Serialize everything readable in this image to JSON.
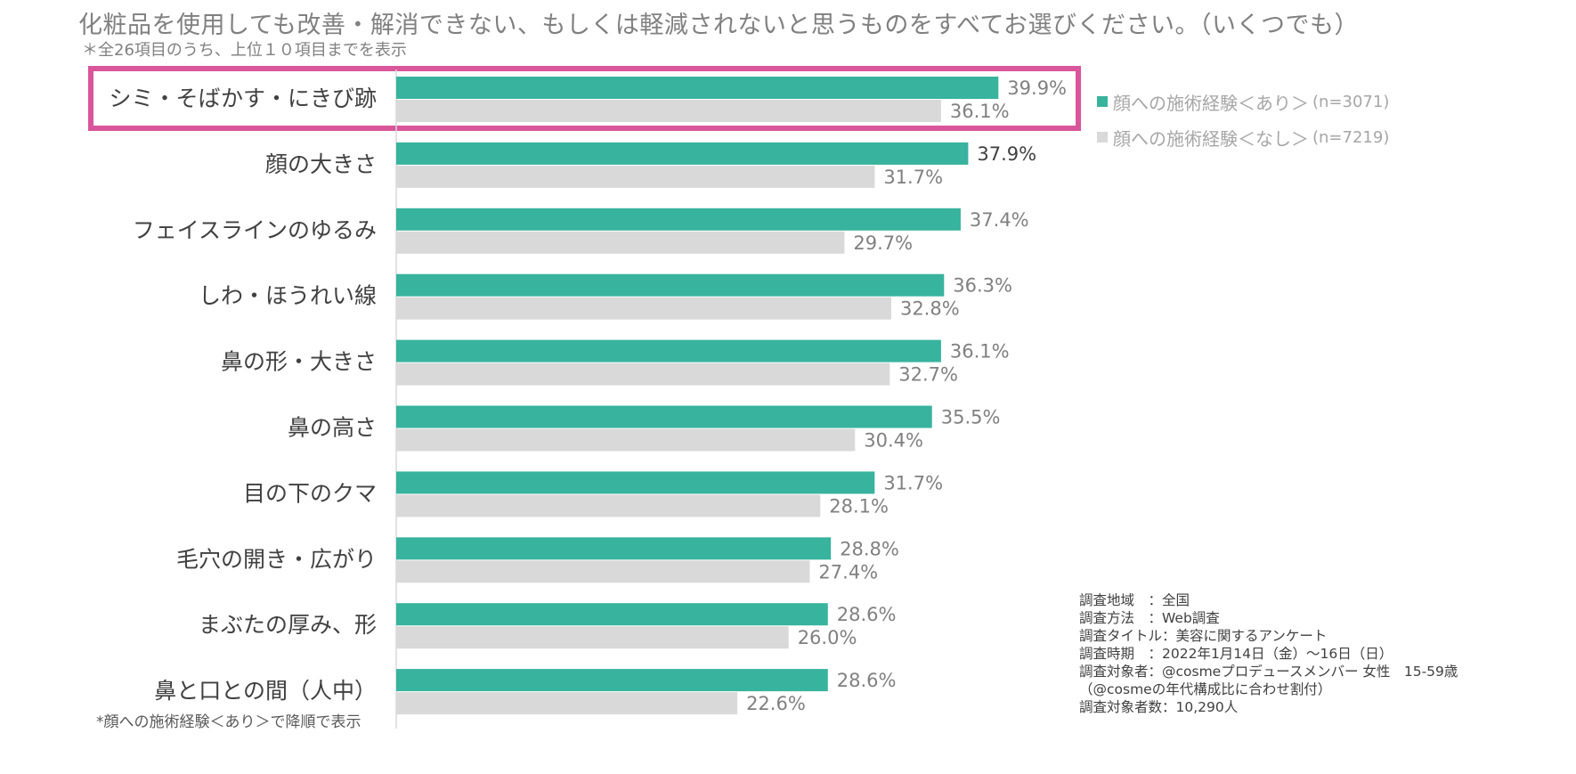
{
  "title": "化粧品を使用しても改善・解消できない、もしくは軽減されないと思うものをすべてお選びください。（いくつでも）",
  "subtitle": "＊全26項目のうち、上位１０項目までを表示",
  "footnote": "*顔への施術経験＜あり＞で降順で表示",
  "colors": {
    "series_a": "#38b39d",
    "series_b": "#d9d9d9",
    "highlight": "#d9569a",
    "axis": "#d9d9d9"
  },
  "legend": [
    {
      "label": "顔への施術経験＜あり＞",
      "n": "(n=3071)"
    },
    {
      "label": "顔への施術経験＜なし＞",
      "n": "(n=7219)"
    }
  ],
  "survey": [
    "調査地域　：全国",
    "調査方法　：Web調査",
    "調査タイトル：美容に関するアンケート",
    "調査時期　：2022年1月14日（金）～16日（日）",
    "調査対象者：@cosmeプロデュースメンバー 女性　15-59歳",
    "（@cosmeの年代構成比に合わせ割付）",
    "調査対象者数：10,290人"
  ],
  "chart_data": {
    "type": "bar",
    "orientation": "horizontal",
    "categories": [
      "シミ・そばかす・にきび跡",
      "顔の大きさ",
      "フェイスラインのゆるみ",
      "しわ・ほうれい線",
      "鼻の形・大きさ",
      "鼻の高さ",
      "目の下のクマ",
      "毛穴の開き・広がり",
      "まぶたの厚み、形",
      "鼻と口との間（人中）"
    ],
    "series": [
      {
        "name": "顔への施術経験＜あり＞",
        "values": [
          39.9,
          37.9,
          37.4,
          36.3,
          36.1,
          35.5,
          31.7,
          28.8,
          28.6,
          28.6
        ],
        "labels": [
          "39.9%",
          "37.9%",
          "37.4%",
          "36.3%",
          "36.1%",
          "35.5%",
          "31.7%",
          "28.8%",
          "28.6%",
          "28.6%"
        ]
      },
      {
        "name": "顔への施術経験＜なし＞",
        "values": [
          36.1,
          31.7,
          29.7,
          32.8,
          32.7,
          30.4,
          28.1,
          27.4,
          26.0,
          22.6
        ],
        "labels": [
          "36.1%",
          "31.7%",
          "29.7%",
          "32.8%",
          "32.7%",
          "30.4%",
          "28.1%",
          "27.4%",
          "26.0%",
          "22.6%"
        ]
      }
    ],
    "xlim": [
      0,
      45
    ],
    "highlighted_category": "シミ・そばかす・にきび跡",
    "bold_label": {
      "series": 0,
      "index": 1
    }
  }
}
